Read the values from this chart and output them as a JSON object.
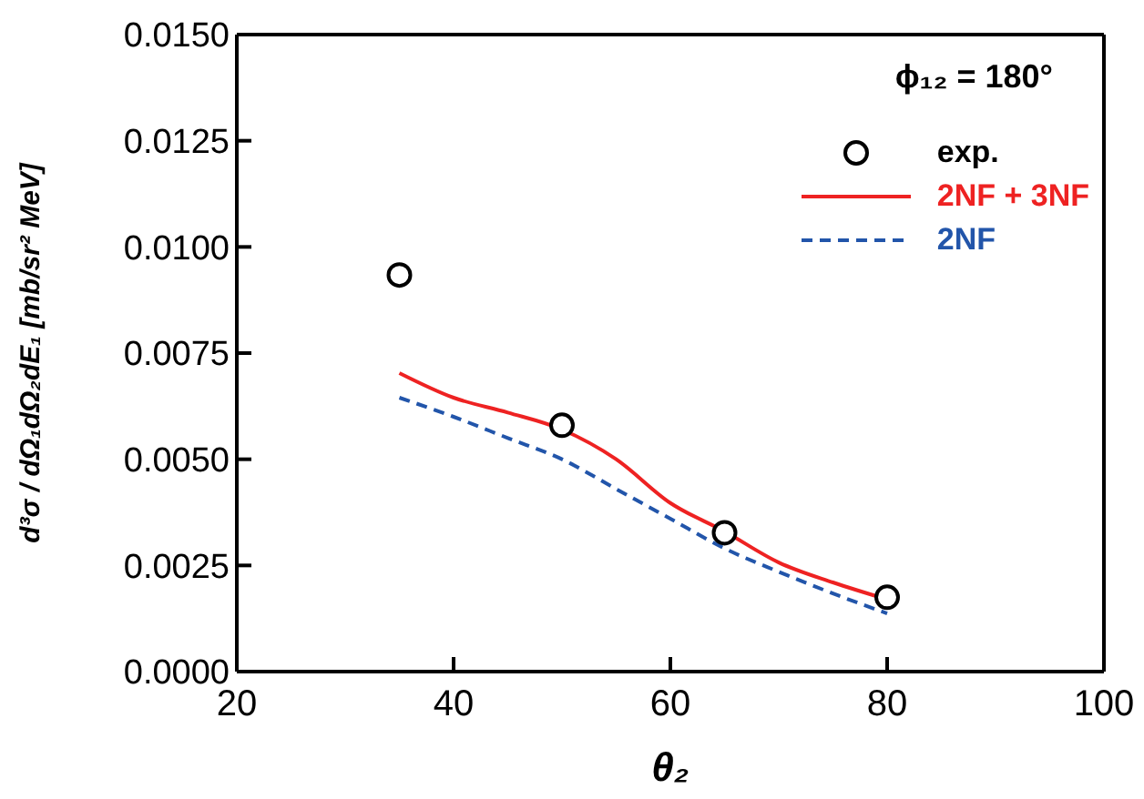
{
  "chart_data": {
    "type": "line",
    "xlabel": "θ₂",
    "ylabel": "d³σ / dΩ₁dΩ₂dE₁  [mb/sr² MeV]",
    "annotations": [
      "ϕ₁₂ = 180°"
    ],
    "xlim": [
      20,
      100
    ],
    "xticks": [
      20,
      40,
      60,
      80,
      100
    ],
    "ylim": [
      0,
      0.015
    ],
    "yticks": [
      {
        "value": 0,
        "label": "0.0000"
      },
      {
        "value": 0.0025,
        "label": "0.0025"
      },
      {
        "value": 0.005,
        "label": "0.0050"
      },
      {
        "value": 0.0075,
        "label": "0.0075"
      },
      {
        "value": 0.01,
        "label": "0.0100"
      },
      {
        "value": 0.0125,
        "label": "0.0125"
      },
      {
        "value": 0.015,
        "label": "0.0150"
      }
    ],
    "legend": "top right",
    "grid": false,
    "series": [
      {
        "name": "exp.",
        "type": "scatter",
        "marker": "circle",
        "color": "#000000",
        "x": [
          35,
          50,
          65,
          80
        ],
        "values": [
          0.00934,
          0.0058,
          0.00327,
          0.00175
        ]
      },
      {
        "name": "2NF + 3NF",
        "line_style": "solid",
        "color": "#ee2222",
        "x": [
          35,
          40,
          45,
          50,
          55,
          60,
          65,
          70,
          75,
          80
        ],
        "values": [
          0.00703,
          0.00645,
          0.0061,
          0.0057,
          0.005,
          0.00397,
          0.0033,
          0.00257,
          0.0021,
          0.0017
        ]
      },
      {
        "name": "2NF",
        "line_style": "dashed",
        "color": "#2255aa",
        "x": [
          35,
          40,
          45,
          50,
          55,
          60,
          65,
          70,
          75,
          80
        ],
        "values": [
          0.00645,
          0.006,
          0.0055,
          0.005,
          0.0043,
          0.0036,
          0.0029,
          0.00235,
          0.00184,
          0.00137
        ]
      }
    ]
  }
}
